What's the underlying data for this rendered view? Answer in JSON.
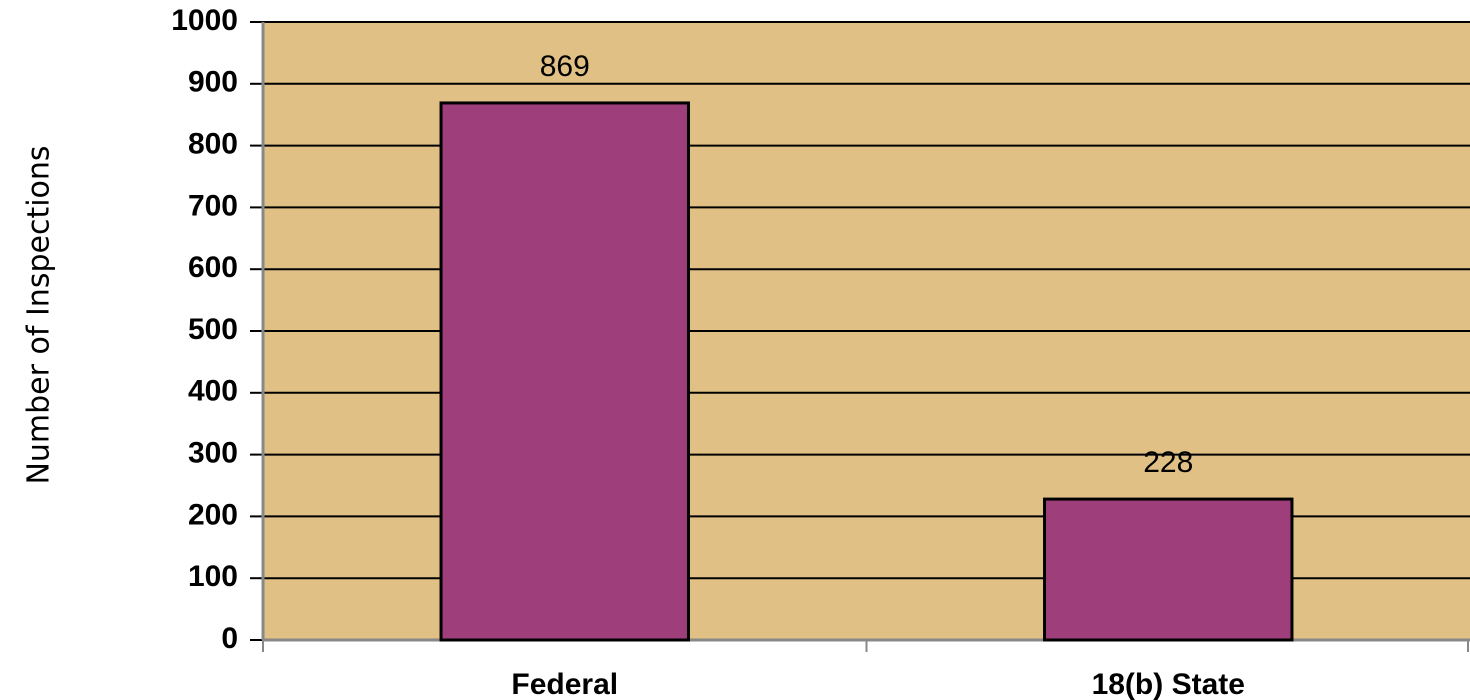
{
  "chart_data": {
    "type": "bar",
    "y_label": "Number of Inspections",
    "categories": [
      "Federal",
      "18(b) State"
    ],
    "values": [
      869,
      228
    ],
    "color": "#9e3f7c",
    "background": "#e0c084",
    "ylim": [
      0,
      1000
    ],
    "yticks": [
      0,
      100,
      200,
      300,
      400,
      500,
      600,
      700,
      800,
      900,
      1000
    ],
    "grid": true
  }
}
